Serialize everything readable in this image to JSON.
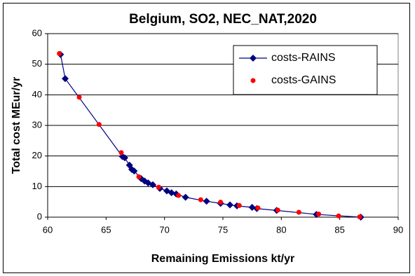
{
  "chart_data": {
    "type": "line",
    "title": "Belgium, SO2, NEC_NAT,2020",
    "x_label": "Remaining Emissions kt/yr",
    "y_label": "Total cost MEur/yr",
    "xlim": [
      60,
      90
    ],
    "xticks": [
      60,
      65,
      70,
      75,
      80,
      85,
      90
    ],
    "ylim": [
      0,
      60
    ],
    "yticks": [
      0,
      10,
      20,
      30,
      40,
      50,
      60
    ],
    "grid": true,
    "legend": "upper right",
    "series": [
      {
        "name": "costs-RAINS",
        "color": "#000080",
        "marker": "diamond",
        "line": true,
        "x": [
          61.1,
          61.5,
          66.4,
          66.6,
          67.0,
          67.2,
          67.4,
          68.0,
          68.3,
          68.6,
          69.0,
          69.6,
          70.2,
          70.6,
          71.0,
          71.8,
          73.6,
          74.8,
          75.6,
          76.2,
          77.5,
          77.9,
          79.6,
          83.0,
          86.8
        ],
        "values": [
          53.2,
          45.3,
          19.8,
          19.4,
          17.0,
          15.6,
          15.1,
          12.6,
          11.8,
          11.2,
          10.6,
          9.4,
          8.6,
          8.0,
          7.6,
          6.5,
          5.2,
          4.5,
          4.0,
          3.7,
          3.2,
          2.8,
          2.2,
          0.9,
          0.0
        ]
      },
      {
        "name": "costs-GAINS",
        "color": "#ff0000",
        "marker": "circle",
        "line": false,
        "x": [
          61.0,
          62.7,
          64.4,
          66.3,
          67.8,
          69.5,
          71.2,
          73.1,
          74.8,
          76.4,
          78.0,
          79.7,
          81.5,
          83.2,
          84.9,
          86.7
        ],
        "values": [
          53.5,
          39.2,
          30.3,
          21.1,
          13.2,
          9.8,
          7.1,
          5.7,
          4.9,
          3.8,
          3.0,
          2.3,
          1.6,
          1.0,
          0.4,
          0.1
        ]
      }
    ]
  }
}
